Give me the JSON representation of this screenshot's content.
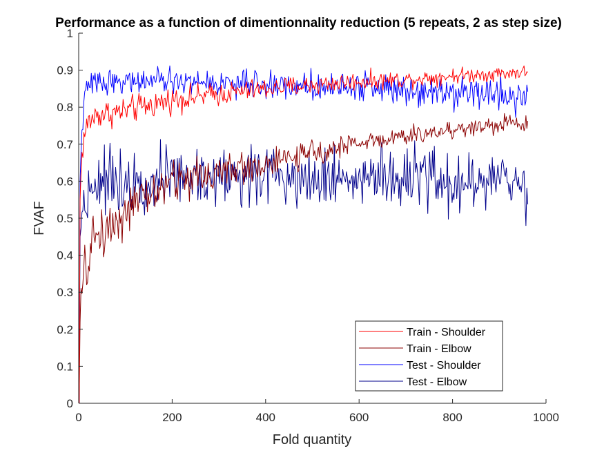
{
  "chart_data": {
    "type": "line",
    "title": "Performance as a function of dimentionnality reduction (5 repeats, 2 as step size)",
    "xlabel": "Fold quantity",
    "ylabel": "FVAF",
    "xlim": [
      0,
      1000
    ],
    "ylim": [
      0,
      1
    ],
    "xticks": [
      "0",
      "200",
      "400",
      "600",
      "800",
      "1000"
    ],
    "yticks": [
      "0",
      "0.1",
      "0.2",
      "0.3",
      "0.4",
      "0.5",
      "0.6",
      "0.7",
      "0.8",
      "0.9",
      "1"
    ],
    "grid": false,
    "legend_position": "bottom-right",
    "x_start": 1,
    "x_end": 961,
    "x_step": 2,
    "series": [
      {
        "name": "Train - Shoulder",
        "color": "#ff0000",
        "anchors": [
          [
            1,
            0.0
          ],
          [
            3,
            0.55
          ],
          [
            7,
            0.68
          ],
          [
            13,
            0.73
          ],
          [
            21,
            0.76
          ],
          [
            40,
            0.78
          ],
          [
            100,
            0.79
          ],
          [
            200,
            0.82
          ],
          [
            300,
            0.835
          ],
          [
            400,
            0.85
          ],
          [
            500,
            0.86
          ],
          [
            600,
            0.87
          ],
          [
            700,
            0.875
          ],
          [
            800,
            0.885
          ],
          [
            961,
            0.895
          ]
        ],
        "noise": [
          [
            0,
            0.02
          ],
          [
            400,
            0.014
          ],
          [
            961,
            0.009
          ]
        ]
      },
      {
        "name": "Train - Elbow",
        "color": "#8b0000",
        "anchors": [
          [
            1,
            0.0
          ],
          [
            3,
            0.22
          ],
          [
            7,
            0.3
          ],
          [
            15,
            0.37
          ],
          [
            25,
            0.39
          ],
          [
            30,
            0.45
          ],
          [
            60,
            0.47
          ],
          [
            100,
            0.52
          ],
          [
            150,
            0.56
          ],
          [
            200,
            0.6
          ],
          [
            300,
            0.625
          ],
          [
            400,
            0.645
          ],
          [
            500,
            0.675
          ],
          [
            600,
            0.705
          ],
          [
            700,
            0.72
          ],
          [
            800,
            0.74
          ],
          [
            961,
            0.76
          ]
        ],
        "noise": [
          [
            0,
            0.035
          ],
          [
            200,
            0.03
          ],
          [
            400,
            0.02
          ],
          [
            600,
            0.012
          ],
          [
            961,
            0.013
          ]
        ]
      },
      {
        "name": "Test - Shoulder",
        "color": "#0000ff",
        "anchors": [
          [
            1,
            0.0
          ],
          [
            3,
            0.6
          ],
          [
            7,
            0.74
          ],
          [
            13,
            0.83
          ],
          [
            21,
            0.86
          ],
          [
            50,
            0.87
          ],
          [
            200,
            0.87
          ],
          [
            400,
            0.86
          ],
          [
            600,
            0.855
          ],
          [
            800,
            0.845
          ],
          [
            961,
            0.83
          ]
        ],
        "noise": [
          [
            0,
            0.015
          ],
          [
            400,
            0.018
          ],
          [
            961,
            0.024
          ]
        ]
      },
      {
        "name": "Test - Elbow",
        "color": "#00008b",
        "anchors": [
          [
            1,
            0.0
          ],
          [
            3,
            0.45
          ],
          [
            7,
            0.52
          ],
          [
            15,
            0.55
          ],
          [
            30,
            0.6
          ],
          [
            400,
            0.62
          ],
          [
            961,
            0.59
          ]
        ],
        "noise": [
          [
            0,
            0.04
          ],
          [
            961,
            0.043
          ]
        ]
      }
    ]
  }
}
